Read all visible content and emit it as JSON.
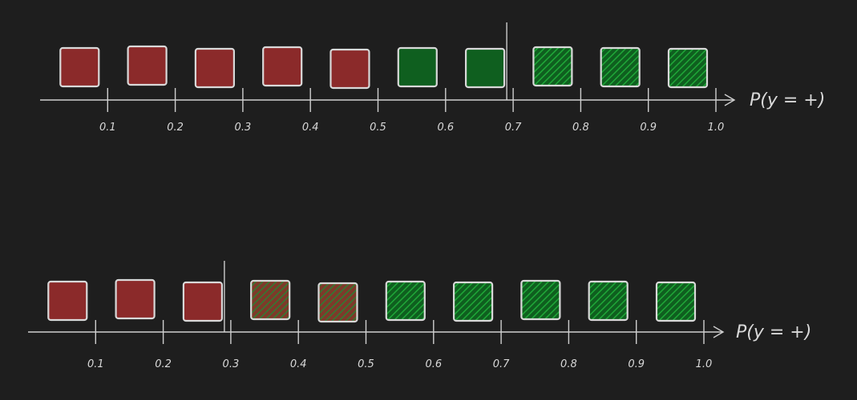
{
  "colors": {
    "background": "#1e1e1e",
    "negative_fill": "#8b2a2a",
    "positive_fill": "#0f5f1f",
    "hatch_green": "#1fa838",
    "hatch_red": "#a03030",
    "outline": "#d9d9d9"
  },
  "diagrams": [
    {
      "axis_title": "P(y = +)",
      "tick_labels": [
        "0.1",
        "0.2",
        "0.3",
        "0.4",
        "0.5",
        "0.6",
        "0.7",
        "0.8",
        "0.9",
        "1.0"
      ],
      "threshold": 0.7,
      "samples": [
        {
          "value": 0.03,
          "style": "red-solid"
        },
        {
          "value": 0.13,
          "style": "red-solid"
        },
        {
          "value": 0.23,
          "style": "red-solid"
        },
        {
          "value": 0.33,
          "style": "red-solid"
        },
        {
          "value": 0.43,
          "style": "red-solid"
        },
        {
          "value": 0.53,
          "style": "green-solid"
        },
        {
          "value": 0.63,
          "style": "green-solid"
        },
        {
          "value": 0.73,
          "style": "green-hatch"
        },
        {
          "value": 0.83,
          "style": "green-hatch"
        },
        {
          "value": 0.93,
          "style": "green-hatch"
        }
      ]
    },
    {
      "axis_title": "P(y = +)",
      "tick_labels": [
        "0.1",
        "0.2",
        "0.3",
        "0.4",
        "0.5",
        "0.6",
        "0.7",
        "0.8",
        "0.9",
        "1.0"
      ],
      "threshold": 0.3,
      "samples": [
        {
          "value": 0.03,
          "style": "red-solid"
        },
        {
          "value": 0.13,
          "style": "red-solid"
        },
        {
          "value": 0.23,
          "style": "red-solid"
        },
        {
          "value": 0.33,
          "style": "red-hatch"
        },
        {
          "value": 0.43,
          "style": "red-hatch"
        },
        {
          "value": 0.53,
          "style": "green-hatch"
        },
        {
          "value": 0.63,
          "style": "green-hatch"
        },
        {
          "value": 0.73,
          "style": "green-hatch"
        },
        {
          "value": 0.83,
          "style": "green-hatch"
        },
        {
          "value": 0.93,
          "style": "green-hatch"
        }
      ]
    }
  ]
}
